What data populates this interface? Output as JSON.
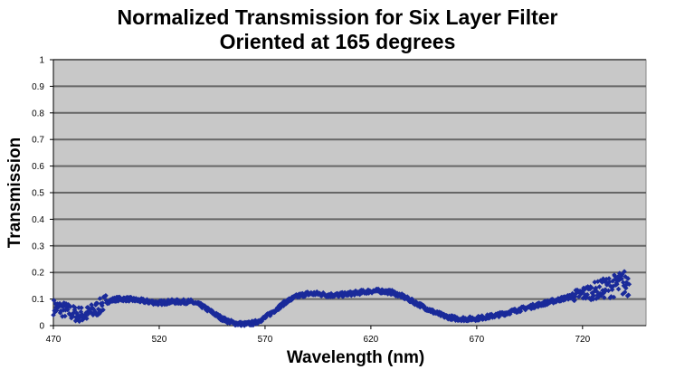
{
  "chart_data": {
    "type": "scatter",
    "title_lines": [
      "Normalized Transmission for Six Layer Filter",
      "Oriented at 165 degrees"
    ],
    "xlabel": "Wavelength (nm)",
    "ylabel": "Transmission",
    "xlim": [
      470,
      750
    ],
    "ylim": [
      0,
      1
    ],
    "xticks": [
      "470",
      "520",
      "570",
      "620",
      "670",
      "720"
    ],
    "yticks": [
      "0",
      "0.1",
      "0.2",
      "0.3",
      "0.4",
      "0.5",
      "0.6",
      "0.7",
      "0.8",
      "0.9",
      "1"
    ],
    "grid": true,
    "legend": "none",
    "marker_color": "#1a2a9a",
    "plot_background": "#c8c8c8",
    "series": [
      {
        "name": "Transmission",
        "x": [
          470,
          475,
          480,
          485,
          490,
          495,
          500,
          505,
          510,
          515,
          520,
          525,
          530,
          535,
          540,
          545,
          550,
          555,
          560,
          565,
          570,
          575,
          580,
          585,
          590,
          595,
          600,
          605,
          610,
          615,
          620,
          625,
          630,
          635,
          640,
          645,
          650,
          655,
          660,
          665,
          670,
          675,
          680,
          685,
          690,
          695,
          700,
          705,
          710,
          715,
          720,
          725,
          730,
          735,
          740
        ],
        "y": [
          0.07,
          0.06,
          0.045,
          0.04,
          0.06,
          0.09,
          0.1,
          0.1,
          0.095,
          0.09,
          0.085,
          0.09,
          0.09,
          0.09,
          0.075,
          0.05,
          0.025,
          0.01,
          0.005,
          0.01,
          0.03,
          0.06,
          0.09,
          0.11,
          0.12,
          0.12,
          0.115,
          0.115,
          0.12,
          0.125,
          0.13,
          0.13,
          0.125,
          0.11,
          0.09,
          0.07,
          0.05,
          0.035,
          0.027,
          0.025,
          0.027,
          0.033,
          0.04,
          0.05,
          0.06,
          0.07,
          0.08,
          0.09,
          0.1,
          0.11,
          0.12,
          0.13,
          0.14,
          0.15,
          0.16
        ]
      }
    ]
  }
}
